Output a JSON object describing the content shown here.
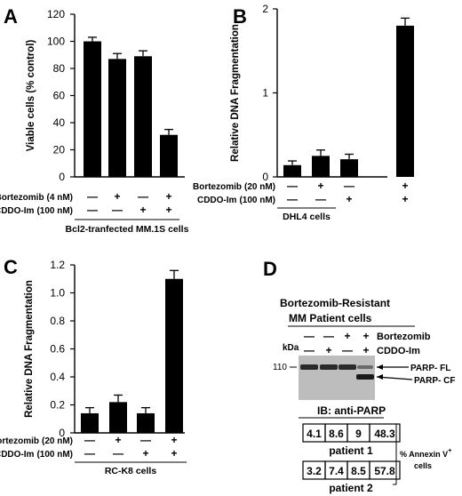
{
  "panels": [
    {
      "letter": "A"
    },
    {
      "letter": "B"
    },
    {
      "letter": "C"
    },
    {
      "letter": "D"
    }
  ],
  "chart_data": [
    {
      "panel": "A",
      "type": "bar",
      "title": "",
      "xlabel": "Bcl2-tranfected MM.1S cells",
      "ylabel": "Viable cells (% control)",
      "ylim": [
        0,
        120
      ],
      "yticks": [
        "0",
        "20",
        "40",
        "60",
        "80",
        "100",
        "120"
      ],
      "treatments": [
        {
          "label": "Bortezomib",
          "dose": "(4 nM)",
          "signs": [
            "—",
            "+",
            "—",
            "+"
          ]
        },
        {
          "label": "CDDO-Im",
          "dose": "(100 nM)",
          "signs": [
            "—",
            "—",
            "+",
            "+"
          ]
        }
      ],
      "values": [
        100,
        87,
        89,
        31
      ],
      "errors": [
        3,
        4,
        4,
        4
      ],
      "colors": [
        "#000000"
      ]
    },
    {
      "panel": "B",
      "type": "bar",
      "title": "",
      "xlabel": "DHL4 cells",
      "ylabel": "Relative DNA Fragmentation",
      "ylim": [
        0,
        2
      ],
      "yticks": [
        "0",
        "1",
        "2"
      ],
      "treatments": [
        {
          "label": "Bortezomib",
          "dose": "(20 nM)",
          "signs": [
            "—",
            "+",
            "—",
            "+"
          ]
        },
        {
          "label": "CDDO-Im",
          "dose": "(100 nM)",
          "signs": [
            "—",
            "—",
            "+",
            "+"
          ]
        }
      ],
      "values": [
        0.14,
        0.25,
        0.21,
        1.8
      ],
      "errors": [
        0.05,
        0.07,
        0.06,
        0.09
      ],
      "colors": [
        "#000000"
      ]
    },
    {
      "panel": "C",
      "type": "bar",
      "title": "",
      "xlabel": "RC-K8 cells",
      "ylabel": "Relative DNA Fragmentation",
      "ylim": [
        0,
        1.2
      ],
      "yticks": [
        "0",
        "0.2",
        "0.4",
        "0.6",
        "0.8",
        "1.0",
        "1.2"
      ],
      "treatments": [
        {
          "label": "Bortezomib",
          "dose": "(20 nM)",
          "signs": [
            "—",
            "+",
            "—",
            "+"
          ]
        },
        {
          "label": "CDDO-Im",
          "dose": "(100 nM)",
          "signs": [
            "—",
            "—",
            "+",
            "+"
          ]
        }
      ],
      "values": [
        0.14,
        0.22,
        0.14,
        1.1
      ],
      "errors": [
        0.04,
        0.05,
        0.04,
        0.06
      ],
      "colors": [
        "#000000"
      ]
    }
  ],
  "blot": {
    "panel": "D",
    "title": "Bortezomib-Resistant",
    "subtitle": "MM Patient cells",
    "kda_label": "kDa",
    "marker": "110",
    "treatments": [
      {
        "label": "Bortezomib",
        "signs": [
          "—",
          "—",
          "+",
          "+"
        ]
      },
      {
        "label": "CDDO-Im",
        "signs": [
          "—",
          "+",
          "—",
          "+"
        ]
      }
    ],
    "bands": [
      "PARP- FL",
      "PARP- CF"
    ],
    "ib_label": "IB: anti-PARP",
    "annexin_label": "% Annexin V",
    "annexin_sup": "+",
    "annexin_cells": "cells",
    "patients": [
      {
        "name": "patient 1",
        "values": [
          "4.1",
          "8.6",
          "9",
          "48.3"
        ]
      },
      {
        "name": "patient 2",
        "values": [
          "3.2",
          "7.4",
          "8.5",
          "57.8"
        ]
      }
    ]
  }
}
